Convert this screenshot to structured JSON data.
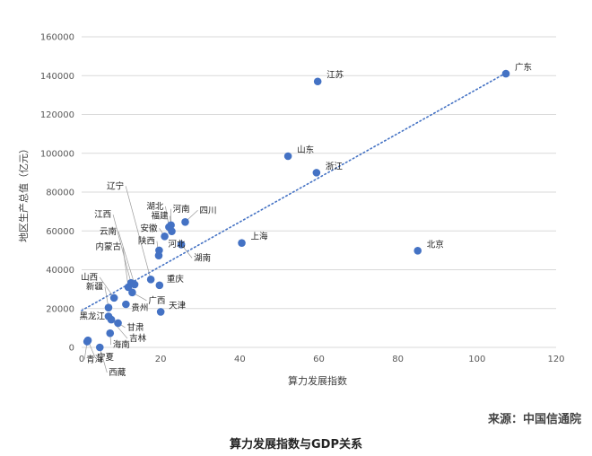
{
  "chart_data": {
    "type": "scatter",
    "xlabel": "算力发展指数",
    "ylabel": "地区生产总值（亿元）",
    "xlim": [
      0,
      120
    ],
    "ylim": [
      0,
      160000
    ],
    "x_ticks": [
      "0",
      "20",
      "40",
      "60",
      "80",
      "100",
      "120"
    ],
    "y_ticks": [
      "0",
      "20000",
      "40000",
      "60000",
      "80000",
      "100000",
      "120000",
      "140000",
      "160000"
    ],
    "grid": "horizontal",
    "trendline": {
      "style": "dotted",
      "x": [
        0,
        107
      ],
      "y": [
        19000,
        141000
      ]
    },
    "colors": {
      "point": "#4472C4",
      "trend": "#4472C4",
      "grid": "#d9d9d9"
    },
    "points": [
      {
        "label": "广东",
        "x": 107.3,
        "y": 141000
      },
      {
        "label": "江苏",
        "x": 59.7,
        "y": 137000
      },
      {
        "label": "山东",
        "x": 52.2,
        "y": 98500
      },
      {
        "label": "浙江",
        "x": 59.4,
        "y": 90000
      },
      {
        "label": "北京",
        "x": 85.0,
        "y": 49800
      },
      {
        "label": "上海",
        "x": 40.5,
        "y": 53800
      },
      {
        "label": "四川",
        "x": 26.2,
        "y": 64600
      },
      {
        "label": "河南",
        "x": 22.6,
        "y": 63000
      },
      {
        "label": "湖北",
        "x": 22.1,
        "y": 62000
      },
      {
        "label": "福建",
        "x": 22.8,
        "y": 59800
      },
      {
        "label": "安徽",
        "x": 21.0,
        "y": 57200
      },
      {
        "label": "湖南",
        "x": 25.2,
        "y": 53000
      },
      {
        "label": "河北",
        "x": 19.6,
        "y": 50000
      },
      {
        "label": "陕西",
        "x": 19.5,
        "y": 47300
      },
      {
        "label": "重庆",
        "x": 19.7,
        "y": 32000
      },
      {
        "label": "辽宁",
        "x": 17.5,
        "y": 35000
      },
      {
        "label": "江西",
        "x": 12.5,
        "y": 33200
      },
      {
        "label": "云南",
        "x": 13.4,
        "y": 32400
      },
      {
        "label": "内蒙古",
        "x": 11.8,
        "y": 31000
      },
      {
        "label": "广西",
        "x": 12.8,
        "y": 28300
      },
      {
        "label": "山西",
        "x": 8.2,
        "y": 25500
      },
      {
        "label": "贵州",
        "x": 11.2,
        "y": 22200
      },
      {
        "label": "新疆",
        "x": 6.8,
        "y": 20500
      },
      {
        "label": "天津",
        "x": 20.0,
        "y": 18300
      },
      {
        "label": "黑龙江",
        "x": 6.8,
        "y": 16000
      },
      {
        "label": "吉林",
        "x": 7.5,
        "y": 14300
      },
      {
        "label": "甘肃",
        "x": 9.2,
        "y": 12500
      },
      {
        "label": "海南",
        "x": 7.2,
        "y": 7300
      },
      {
        "label": "宁夏",
        "x": 1.6,
        "y": 3600
      },
      {
        "label": "青海",
        "x": 1.4,
        "y": 3000
      },
      {
        "label": "西藏",
        "x": 4.6,
        "y": 0
      }
    ]
  },
  "source": "来源：中国信通院",
  "caption": "算力发展指数与GDP关系"
}
